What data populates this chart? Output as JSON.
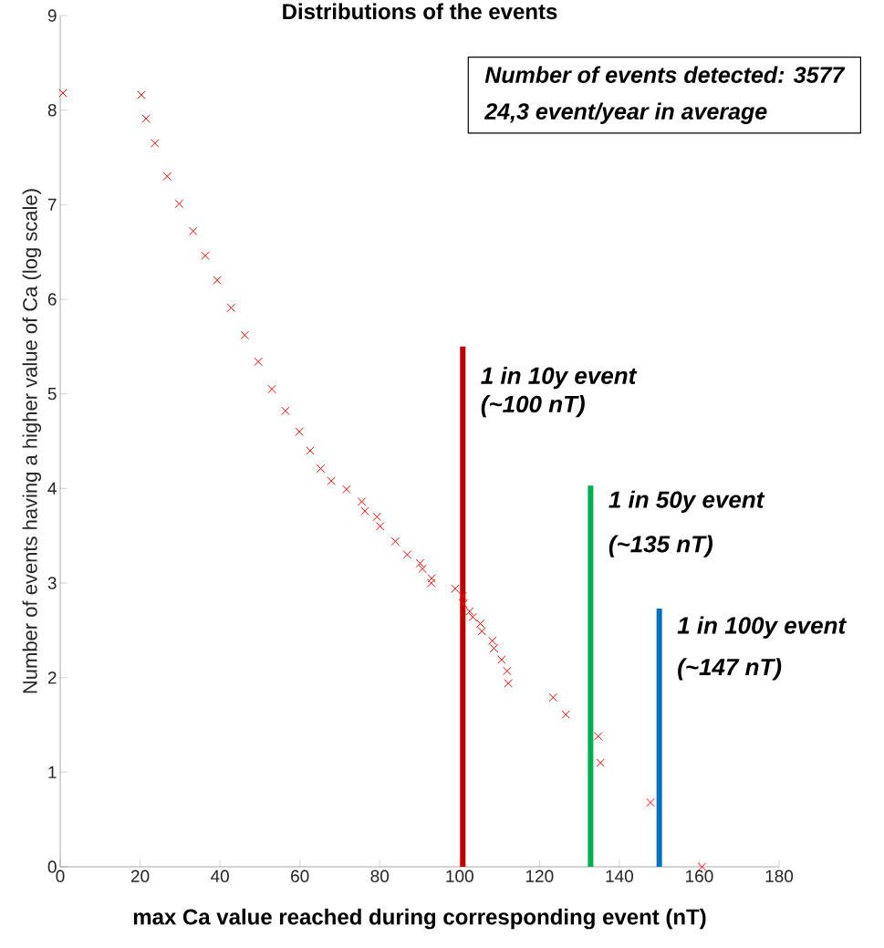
{
  "chart_data": {
    "type": "scatter",
    "title": "Distributions of the events",
    "xlabel": "max Ca value reached during corresponding event (nT)",
    "ylabel": "Number of events having a higher value of Ca (log scale)",
    "xlim": [
      0,
      180
    ],
    "ylim": [
      0,
      9
    ],
    "xticks": [
      0,
      20,
      40,
      60,
      80,
      100,
      120,
      140,
      160,
      180
    ],
    "yticks": [
      0,
      1,
      2,
      3,
      4,
      5,
      6,
      7,
      8,
      9
    ],
    "marker": "cross",
    "series": [
      {
        "color": "#ff0000",
        "x": [
          0.7,
          20.3,
          21.5,
          23.7,
          26.8,
          29.8,
          33.3,
          36.3,
          39.3,
          42.8,
          46.2,
          49.6,
          53.0,
          56.4,
          59.9,
          62.6,
          65.2,
          67.9,
          71.7,
          75.5,
          76.3,
          79.3,
          80.1,
          83.9,
          86.9,
          90.1,
          90.7,
          93.0,
          92.9,
          98.9,
          100.8,
          101.0,
          102.5,
          103.3,
          105.2,
          105.6,
          108.2,
          108.6,
          110.5,
          111.9,
          112.2,
          123.4,
          126.6,
          134.7,
          135.3,
          147.8,
          160.7
        ],
        "values": [
          8.18,
          8.16,
          7.91,
          7.65,
          7.3,
          7.01,
          6.72,
          6.46,
          6.2,
          5.91,
          5.62,
          5.34,
          5.05,
          4.82,
          4.6,
          4.4,
          4.21,
          4.08,
          3.99,
          3.86,
          3.76,
          3.7,
          3.6,
          3.44,
          3.3,
          3.21,
          3.15,
          3.05,
          3.0,
          2.94,
          2.86,
          2.78,
          2.7,
          2.64,
          2.57,
          2.49,
          2.39,
          2.31,
          2.19,
          2.07,
          1.94,
          1.79,
          1.61,
          1.38,
          1.1,
          0.68,
          0
        ]
      },
      {
        "type": "line",
        "marker": "none",
        "color": "#c00000",
        "x": [
          100.8,
          100.8
        ],
        "values": [
          0,
          5.5
        ]
      },
      {
        "type": "line",
        "marker": "none",
        "color": "#00b050",
        "x": [
          132.8,
          132.8
        ],
        "values": [
          0,
          4.03
        ]
      },
      {
        "type": "line",
        "marker": "none",
        "color": "#0070c0",
        "x": [
          150,
          150
        ],
        "values": [
          0,
          2.73
        ]
      }
    ],
    "annotations": [
      "Number of events detected: 3577",
      "24,3 event/year in average",
      {
        "text": "1 in 10y event",
        "x": 100.8,
        "y": 5.17
      },
      {
        "text": "(~100 nT)",
        "x": 100.8,
        "y": 4.87
      },
      {
        "text": "1 in 50y event",
        "x": 132.8,
        "y": 3.86
      },
      {
        "text": "(~135 nT)",
        "x": 132.8,
        "y": 3.39
      },
      {
        "text": "1 in 100y event",
        "x": 150,
        "y": 2.53
      },
      {
        "text": "(~147 nT)",
        "x": 150,
        "y": 2.09
      }
    ]
  }
}
